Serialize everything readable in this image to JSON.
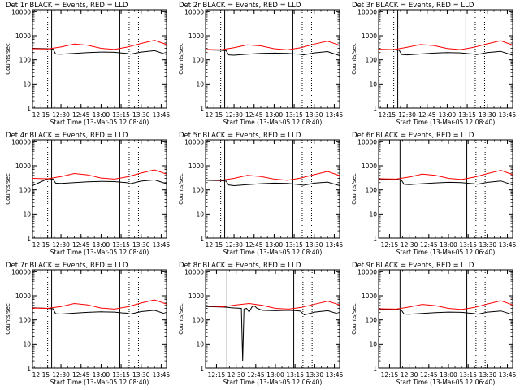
{
  "chart_data": [
    {
      "type": "line",
      "title": "Det 1r BLACK = Events, RED = LLD",
      "xlabel": "Start Time (13-Mar-05 12:08:40)",
      "ylabel": "Counts/sec",
      "yscale": "log",
      "ylim": [
        1,
        12000
      ],
      "yticks": [
        "1",
        "10",
        "100",
        "1000",
        "10000"
      ],
      "xticks": [
        "12:15",
        "12:30",
        "12:45",
        "13:00",
        "13:15",
        "13:30",
        "13:45"
      ],
      "xlim": [
        "12:08:40",
        "13:49"
      ],
      "solid_vlines": [
        "12:23",
        "13:14"
      ],
      "dotted_vlines": [
        "12:20",
        "13:21",
        "13:28"
      ],
      "series": [
        {
          "color": "#000000",
          "x": [
            "12:08:40",
            "12:20",
            "12:24",
            "12:26",
            "12:30",
            "12:40",
            "12:50",
            "13:00",
            "13:10",
            "13:16",
            "13:19",
            "13:22",
            "13:30",
            "13:40",
            "13:49"
          ],
          "y": [
            300,
            290,
            280,
            175,
            170,
            185,
            200,
            210,
            205,
            190,
            185,
            170,
            210,
            240,
            165
          ]
        },
        {
          "color": "#ff0000",
          "x": [
            "12:08:40",
            "12:20",
            "12:30",
            "12:40",
            "12:50",
            "13:00",
            "13:10",
            "13:20",
            "13:30",
            "13:40",
            "13:49"
          ],
          "y": [
            290,
            280,
            340,
            450,
            400,
            300,
            270,
            340,
            480,
            650,
            430
          ]
        }
      ]
    },
    {
      "type": "line",
      "title": "Det 2r BLACK = Events, RED = LLD",
      "xlabel": "Start Time (13-Mar-05 12:08:40)",
      "ylabel": "Counts/sec",
      "yscale": "log",
      "ylim": [
        1,
        12000
      ],
      "yticks": [
        "1",
        "10",
        "100",
        "1000",
        "10000"
      ],
      "xticks": [
        "12:15",
        "12:30",
        "12:45",
        "13:00",
        "13:15",
        "13:30",
        "13:45"
      ],
      "xlim": [
        "12:08:40",
        "13:49"
      ],
      "solid_vlines": [
        "12:23",
        "13:14"
      ],
      "dotted_vlines": [
        "12:20",
        "13:21",
        "13:28"
      ],
      "series": [
        {
          "color": "#000000",
          "x": [
            "12:08:40",
            "12:20",
            "12:24",
            "12:26",
            "12:30",
            "12:40",
            "12:50",
            "13:00",
            "13:10",
            "13:16",
            "13:19",
            "13:22",
            "13:30",
            "13:40",
            "13:49"
          ],
          "y": [
            260,
            250,
            240,
            160,
            155,
            170,
            185,
            190,
            185,
            175,
            170,
            160,
            195,
            220,
            150
          ]
        },
        {
          "color": "#ff0000",
          "x": [
            "12:08:40",
            "12:20",
            "12:30",
            "12:40",
            "12:50",
            "13:00",
            "13:10",
            "13:20",
            "13:30",
            "13:40",
            "13:49"
          ],
          "y": [
            270,
            260,
            320,
            420,
            380,
            290,
            260,
            320,
            450,
            600,
            400
          ]
        }
      ]
    },
    {
      "type": "line",
      "title": "Det 3r BLACK = Events, RED = LLD",
      "xlabel": "Start Time (13-Mar-05 12:08:40)",
      "ylabel": "Counts/sec",
      "yscale": "log",
      "ylim": [
        1,
        12000
      ],
      "yticks": [
        "1",
        "10",
        "100",
        "1000",
        "10000"
      ],
      "xticks": [
        "12:15",
        "12:30",
        "12:45",
        "13:00",
        "13:15",
        "13:30",
        "13:45"
      ],
      "xlim": [
        "12:08:40",
        "13:49"
      ],
      "solid_vlines": [
        "12:23",
        "13:14"
      ],
      "dotted_vlines": [
        "12:20",
        "13:21",
        "13:28"
      ],
      "series": [
        {
          "color": "#000000",
          "x": [
            "12:08:40",
            "12:20",
            "12:24",
            "12:26",
            "12:30",
            "12:40",
            "12:50",
            "13:00",
            "13:10",
            "13:16",
            "13:19",
            "13:22",
            "13:30",
            "13:40",
            "13:49"
          ],
          "y": [
            270,
            260,
            250,
            165,
            160,
            175,
            190,
            200,
            195,
            180,
            175,
            165,
            200,
            225,
            155
          ]
        },
        {
          "color": "#ff0000",
          "x": [
            "12:08:40",
            "12:20",
            "12:30",
            "12:40",
            "12:50",
            "13:00",
            "13:10",
            "13:20",
            "13:30",
            "13:40",
            "13:49"
          ],
          "y": [
            275,
            265,
            330,
            430,
            390,
            295,
            265,
            330,
            460,
            620,
            410
          ]
        }
      ]
    },
    {
      "type": "line",
      "title": "Det 4r BLACK = Events, RED = LLD",
      "xlabel": "Start Time (13-Mar-05 12:08:40)",
      "ylabel": "Counts/sec",
      "yscale": "log",
      "ylim": [
        1,
        12000
      ],
      "yticks": [
        "1",
        "10",
        "100",
        "1000",
        "10000"
      ],
      "xticks": [
        "12:15",
        "12:30",
        "12:45",
        "13:00",
        "13:15",
        "13:30",
        "13:45"
      ],
      "xlim": [
        "12:08:40",
        "13:49"
      ],
      "solid_vlines": [
        "12:23",
        "13:14"
      ],
      "dotted_vlines": [
        "12:20",
        "13:21",
        "13:28"
      ],
      "series": [
        {
          "color": "#000000",
          "x": [
            "12:08:40",
            "12:20",
            "12:24",
            "12:26",
            "12:30",
            "12:40",
            "12:50",
            "13:00",
            "13:10",
            "13:16",
            "13:19",
            "13:22",
            "13:30",
            "13:40",
            "13:49"
          ],
          "y": [
            150,
            290,
            280,
            190,
            185,
            200,
            215,
            225,
            220,
            205,
            200,
            180,
            230,
            260,
            180
          ]
        },
        {
          "color": "#ff0000",
          "x": [
            "12:08:40",
            "12:20",
            "12:30",
            "12:40",
            "12:50",
            "13:00",
            "13:10",
            "13:20",
            "13:30",
            "13:40",
            "13:49"
          ],
          "y": [
            300,
            290,
            360,
            480,
            420,
            310,
            280,
            350,
            500,
            680,
            450
          ]
        }
      ]
    },
    {
      "type": "line",
      "title": "Det 5r BLACK = Events, RED = LLD",
      "xlabel": "Start Time (13-Mar-05 12:08:40)",
      "ylabel": "Counts/sec",
      "yscale": "log",
      "ylim": [
        1,
        12000
      ],
      "yticks": [
        "1",
        "10",
        "100",
        "1000",
        "10000"
      ],
      "xticks": [
        "12:15",
        "12:30",
        "12:45",
        "13:00",
        "13:15",
        "13:30",
        "13:45"
      ],
      "xlim": [
        "12:08:40",
        "13:49"
      ],
      "solid_vlines": [
        "12:23",
        "13:14"
      ],
      "dotted_vlines": [
        "12:20",
        "13:21",
        "13:28"
      ],
      "series": [
        {
          "color": "#000000",
          "x": [
            "12:08:40",
            "12:20",
            "12:24",
            "12:26",
            "12:30",
            "12:40",
            "12:50",
            "13:00",
            "13:10",
            "13:16",
            "13:19",
            "13:22",
            "13:30",
            "13:40",
            "13:49"
          ],
          "y": [
            250,
            240,
            230,
            160,
            150,
            165,
            180,
            190,
            185,
            170,
            165,
            155,
            190,
            210,
            150
          ]
        },
        {
          "color": "#ff0000",
          "x": [
            "12:08:40",
            "12:20",
            "12:30",
            "12:40",
            "12:50",
            "13:00",
            "13:10",
            "13:20",
            "13:30",
            "13:40",
            "13:49"
          ],
          "y": [
            260,
            250,
            300,
            400,
            360,
            280,
            250,
            310,
            430,
            580,
            390
          ]
        }
      ]
    },
    {
      "type": "line",
      "title": "Det 6r BLACK = Events, RED = LLD",
      "xlabel": "Start Time (13-Mar-05 12:06:40)",
      "ylabel": "Counts/sec",
      "yscale": "log",
      "ylim": [
        1,
        12000
      ],
      "yticks": [
        "1",
        "10",
        "100",
        "1000",
        "10000"
      ],
      "xticks": [
        "12:15",
        "12:30",
        "12:45",
        "13:00",
        "13:15",
        "13:30",
        "13:45"
      ],
      "xlim": [
        "12:06:40",
        "13:49"
      ],
      "solid_vlines": [
        "12:23",
        "13:14"
      ],
      "dotted_vlines": [
        "12:20",
        "13:21",
        "13:28"
      ],
      "series": [
        {
          "color": "#000000",
          "x": [
            "12:06:40",
            "12:20",
            "12:24",
            "12:26",
            "12:30",
            "12:40",
            "12:50",
            "13:00",
            "13:10",
            "13:16",
            "13:19",
            "13:22",
            "13:30",
            "13:40",
            "13:49"
          ],
          "y": [
            280,
            270,
            260,
            170,
            165,
            180,
            195,
            205,
            200,
            185,
            180,
            170,
            205,
            235,
            160
          ]
        },
        {
          "color": "#ff0000",
          "x": [
            "12:06:40",
            "12:20",
            "12:30",
            "12:40",
            "12:50",
            "13:00",
            "13:10",
            "13:20",
            "13:30",
            "13:40",
            "13:49"
          ],
          "y": [
            290,
            280,
            340,
            450,
            400,
            300,
            270,
            340,
            480,
            650,
            430
          ]
        }
      ]
    },
    {
      "type": "line",
      "title": "Det 7r BLACK = Events, RED = LLD",
      "xlabel": "Start Time (13-Mar-05 12:08:40)",
      "ylabel": "Counts/sec",
      "yscale": "log",
      "ylim": [
        1,
        12000
      ],
      "yticks": [
        "1",
        "10",
        "100",
        "1000",
        "10000"
      ],
      "xticks": [
        "12:15",
        "12:30",
        "12:45",
        "13:00",
        "13:15",
        "13:30",
        "13:45"
      ],
      "xlim": [
        "12:08:40",
        "13:49"
      ],
      "solid_vlines": [
        "12:23",
        "13:14"
      ],
      "dotted_vlines": [
        "12:20",
        "13:21",
        "13:28"
      ],
      "series": [
        {
          "color": "#000000",
          "x": [
            "12:08:40",
            "12:20",
            "12:24",
            "12:26",
            "12:30",
            "12:40",
            "12:50",
            "13:00",
            "13:10",
            "13:16",
            "13:19",
            "13:22",
            "13:30",
            "13:40",
            "13:49"
          ],
          "y": [
            320,
            300,
            290,
            180,
            175,
            190,
            205,
            215,
            210,
            195,
            190,
            175,
            220,
            250,
            170
          ]
        },
        {
          "color": "#ff0000",
          "x": [
            "12:08:40",
            "12:20",
            "12:30",
            "12:40",
            "12:50",
            "13:00",
            "13:10",
            "13:20",
            "13:30",
            "13:40",
            "13:49"
          ],
          "y": [
            310,
            300,
            360,
            480,
            420,
            310,
            280,
            350,
            500,
            680,
            450
          ]
        }
      ]
    },
    {
      "type": "line",
      "title": "Det 8r BLACK = Events, RED = LLD",
      "xlabel": "Start Time (13-Mar-05 12:06:40)",
      "ylabel": "Counts/sec",
      "yscale": "log",
      "ylim": [
        1,
        12000
      ],
      "yticks": [
        "1",
        "10",
        "100",
        "1000",
        "10000"
      ],
      "xticks": [
        "12:15",
        "12:30",
        "12:45",
        "13:00",
        "13:15",
        "13:30",
        "13:45"
      ],
      "xlim": [
        "12:06:40",
        "13:49"
      ],
      "solid_vlines": [
        "12:23",
        "13:14"
      ],
      "dotted_vlines": [
        "12:20",
        "13:21",
        "13:28"
      ],
      "series": [
        {
          "color": "#000000",
          "x": [
            "12:06:40",
            "12:20",
            "12:24",
            "12:26",
            "12:30",
            "12:34",
            "12:35",
            "12:36",
            "12:38",
            "12:40",
            "12:42",
            "12:44",
            "12:46",
            "12:50",
            "13:00",
            "13:10",
            "13:16",
            "13:19",
            "13:22",
            "13:30",
            "13:40",
            "13:49"
          ],
          "y": [
            360,
            340,
            330,
            320,
            310,
            300,
            2,
            280,
            300,
            210,
            340,
            380,
            300,
            250,
            240,
            250,
            240,
            230,
            160,
            210,
            240,
            170
          ]
        },
        {
          "color": "#ff0000",
          "x": [
            "12:06:40",
            "12:20",
            "12:30",
            "12:40",
            "12:50",
            "13:00",
            "13:10",
            "13:20",
            "13:30",
            "13:40",
            "13:49"
          ],
          "y": [
            380,
            350,
            420,
            480,
            400,
            300,
            280,
            330,
            450,
            600,
            420
          ]
        }
      ]
    },
    {
      "type": "line",
      "title": "Det 9r BLACK = Events, RED = LLD",
      "xlabel": "Start Time (13-Mar-05 12:06:40)",
      "ylabel": "Counts/sec",
      "yscale": "log",
      "ylim": [
        1,
        12000
      ],
      "yticks": [
        "1",
        "10",
        "100",
        "1000",
        "10000"
      ],
      "xticks": [
        "12:15",
        "12:30",
        "12:45",
        "13:00",
        "13:15",
        "13:30",
        "13:45"
      ],
      "xlim": [
        "12:06:40",
        "13:49"
      ],
      "solid_vlines": [
        "12:23",
        "13:14"
      ],
      "dotted_vlines": [
        "12:20",
        "13:21",
        "13:28"
      ],
      "series": [
        {
          "color": "#000000",
          "x": [
            "12:06:40",
            "12:20",
            "12:24",
            "12:26",
            "12:30",
            "12:40",
            "12:50",
            "13:00",
            "13:10",
            "13:16",
            "13:19",
            "13:22",
            "13:30",
            "13:40",
            "13:49"
          ],
          "y": [
            280,
            270,
            260,
            175,
            170,
            185,
            200,
            210,
            205,
            190,
            185,
            170,
            210,
            235,
            165
          ]
        },
        {
          "color": "#ff0000",
          "x": [
            "12:06:40",
            "12:20",
            "12:30",
            "12:40",
            "12:50",
            "13:00",
            "13:10",
            "13:20",
            "13:30",
            "13:40",
            "13:49"
          ],
          "y": [
            290,
            280,
            340,
            440,
            390,
            300,
            270,
            330,
            460,
            620,
            420
          ]
        }
      ]
    }
  ]
}
